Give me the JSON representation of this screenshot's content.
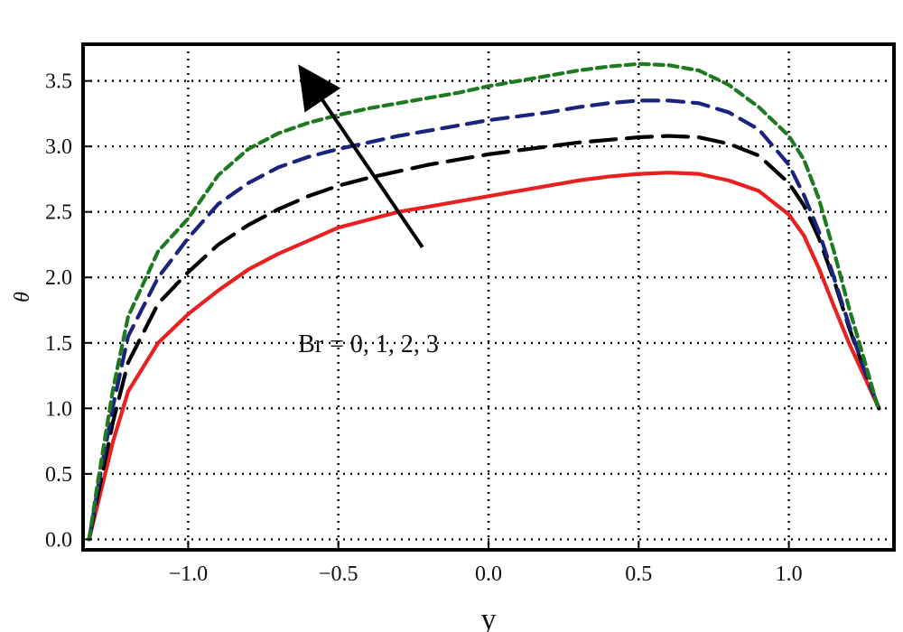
{
  "chart_data": {
    "type": "line",
    "title": "",
    "xlabel": "y",
    "ylabel": "θ",
    "xlim": [
      -1.35,
      1.35
    ],
    "ylim": [
      -0.08,
      3.78
    ],
    "grid": true,
    "xticks": [
      -1.0,
      -0.5,
      0.0,
      0.5,
      1.0
    ],
    "xtick_labels": [
      "−1.0",
      "−0.5",
      "0.0",
      "0.5",
      "1.0"
    ],
    "yticks": [
      0.0,
      0.5,
      1.0,
      1.5,
      2.0,
      2.5,
      3.0,
      3.5
    ],
    "ytick_labels": [
      "0.0",
      "0.5",
      "1.0",
      "1.5",
      "2.0",
      "2.5",
      "3.0",
      "3.5"
    ],
    "annotation": {
      "text": "Br = 0, 1, 2, 3",
      "x": -0.4,
      "y": 1.5
    },
    "arrow": {
      "from": [
        -0.22,
        2.23
      ],
      "to": [
        -0.62,
        3.58
      ]
    },
    "series": [
      {
        "name": "Br = 0",
        "color": "#e8201f",
        "dash": "solid",
        "points": [
          [
            -1.33,
            0.0
          ],
          [
            -1.3,
            0.28
          ],
          [
            -1.25,
            0.75
          ],
          [
            -1.2,
            1.13
          ],
          [
            -1.1,
            1.5
          ],
          [
            -1.0,
            1.72
          ],
          [
            -0.9,
            1.9
          ],
          [
            -0.8,
            2.06
          ],
          [
            -0.7,
            2.18
          ],
          [
            -0.6,
            2.28
          ],
          [
            -0.5,
            2.38
          ],
          [
            -0.4,
            2.44
          ],
          [
            -0.3,
            2.5
          ],
          [
            -0.2,
            2.54
          ],
          [
            -0.1,
            2.58
          ],
          [
            0.0,
            2.62
          ],
          [
            0.1,
            2.66
          ],
          [
            0.2,
            2.7
          ],
          [
            0.3,
            2.74
          ],
          [
            0.4,
            2.77
          ],
          [
            0.5,
            2.79
          ],
          [
            0.6,
            2.8
          ],
          [
            0.7,
            2.79
          ],
          [
            0.8,
            2.74
          ],
          [
            0.9,
            2.66
          ],
          [
            1.0,
            2.48
          ],
          [
            1.05,
            2.32
          ],
          [
            1.1,
            2.07
          ],
          [
            1.15,
            1.78
          ],
          [
            1.2,
            1.5
          ],
          [
            1.25,
            1.25
          ],
          [
            1.3,
            1.0
          ]
        ]
      },
      {
        "name": "Br = 1",
        "color": "#000000",
        "dash": "long",
        "points": [
          [
            -1.33,
            0.0
          ],
          [
            -1.3,
            0.35
          ],
          [
            -1.25,
            0.9
          ],
          [
            -1.2,
            1.35
          ],
          [
            -1.1,
            1.8
          ],
          [
            -1.0,
            2.04
          ],
          [
            -0.9,
            2.25
          ],
          [
            -0.8,
            2.4
          ],
          [
            -0.7,
            2.52
          ],
          [
            -0.6,
            2.62
          ],
          [
            -0.5,
            2.7
          ],
          [
            -0.4,
            2.76
          ],
          [
            -0.3,
            2.81
          ],
          [
            -0.2,
            2.86
          ],
          [
            -0.1,
            2.9
          ],
          [
            0.0,
            2.94
          ],
          [
            0.1,
            2.97
          ],
          [
            0.2,
            3.0
          ],
          [
            0.3,
            3.03
          ],
          [
            0.4,
            3.05
          ],
          [
            0.5,
            3.07
          ],
          [
            0.6,
            3.08
          ],
          [
            0.7,
            3.07
          ],
          [
            0.8,
            3.02
          ],
          [
            0.9,
            2.93
          ],
          [
            1.0,
            2.72
          ],
          [
            1.05,
            2.55
          ],
          [
            1.1,
            2.3
          ],
          [
            1.15,
            1.98
          ],
          [
            1.2,
            1.62
          ],
          [
            1.25,
            1.3
          ],
          [
            1.3,
            1.0
          ]
        ]
      },
      {
        "name": "Br = 2",
        "color": "#1a237e",
        "dash": "medium",
        "points": [
          [
            -1.33,
            0.0
          ],
          [
            -1.3,
            0.4
          ],
          [
            -1.25,
            1.02
          ],
          [
            -1.2,
            1.55
          ],
          [
            -1.1,
            2.0
          ],
          [
            -1.0,
            2.3
          ],
          [
            -0.9,
            2.56
          ],
          [
            -0.8,
            2.72
          ],
          [
            -0.7,
            2.84
          ],
          [
            -0.6,
            2.92
          ],
          [
            -0.5,
            2.98
          ],
          [
            -0.4,
            3.03
          ],
          [
            -0.3,
            3.08
          ],
          [
            -0.2,
            3.12
          ],
          [
            -0.1,
            3.16
          ],
          [
            0.0,
            3.2
          ],
          [
            0.1,
            3.23
          ],
          [
            0.2,
            3.26
          ],
          [
            0.3,
            3.3
          ],
          [
            0.4,
            3.33
          ],
          [
            0.5,
            3.35
          ],
          [
            0.6,
            3.35
          ],
          [
            0.7,
            3.33
          ],
          [
            0.8,
            3.26
          ],
          [
            0.9,
            3.13
          ],
          [
            1.0,
            2.86
          ],
          [
            1.05,
            2.63
          ],
          [
            1.1,
            2.35
          ],
          [
            1.15,
            2.0
          ],
          [
            1.2,
            1.64
          ],
          [
            1.25,
            1.3
          ],
          [
            1.3,
            1.0
          ]
        ]
      },
      {
        "name": "Br = 3",
        "color": "#1f7a1f",
        "dash": "short",
        "points": [
          [
            -1.33,
            0.0
          ],
          [
            -1.3,
            0.45
          ],
          [
            -1.25,
            1.15
          ],
          [
            -1.2,
            1.7
          ],
          [
            -1.1,
            2.2
          ],
          [
            -1.0,
            2.45
          ],
          [
            -0.9,
            2.78
          ],
          [
            -0.8,
            2.98
          ],
          [
            -0.7,
            3.1
          ],
          [
            -0.6,
            3.18
          ],
          [
            -0.5,
            3.24
          ],
          [
            -0.4,
            3.29
          ],
          [
            -0.3,
            3.33
          ],
          [
            -0.2,
            3.37
          ],
          [
            -0.1,
            3.41
          ],
          [
            0.0,
            3.46
          ],
          [
            0.1,
            3.5
          ],
          [
            0.2,
            3.54
          ],
          [
            0.3,
            3.58
          ],
          [
            0.4,
            3.61
          ],
          [
            0.5,
            3.63
          ],
          [
            0.6,
            3.62
          ],
          [
            0.7,
            3.58
          ],
          [
            0.8,
            3.47
          ],
          [
            0.9,
            3.3
          ],
          [
            1.0,
            3.08
          ],
          [
            1.05,
            2.9
          ],
          [
            1.1,
            2.6
          ],
          [
            1.15,
            2.2
          ],
          [
            1.2,
            1.77
          ],
          [
            1.25,
            1.38
          ],
          [
            1.3,
            0.98
          ]
        ]
      }
    ]
  }
}
